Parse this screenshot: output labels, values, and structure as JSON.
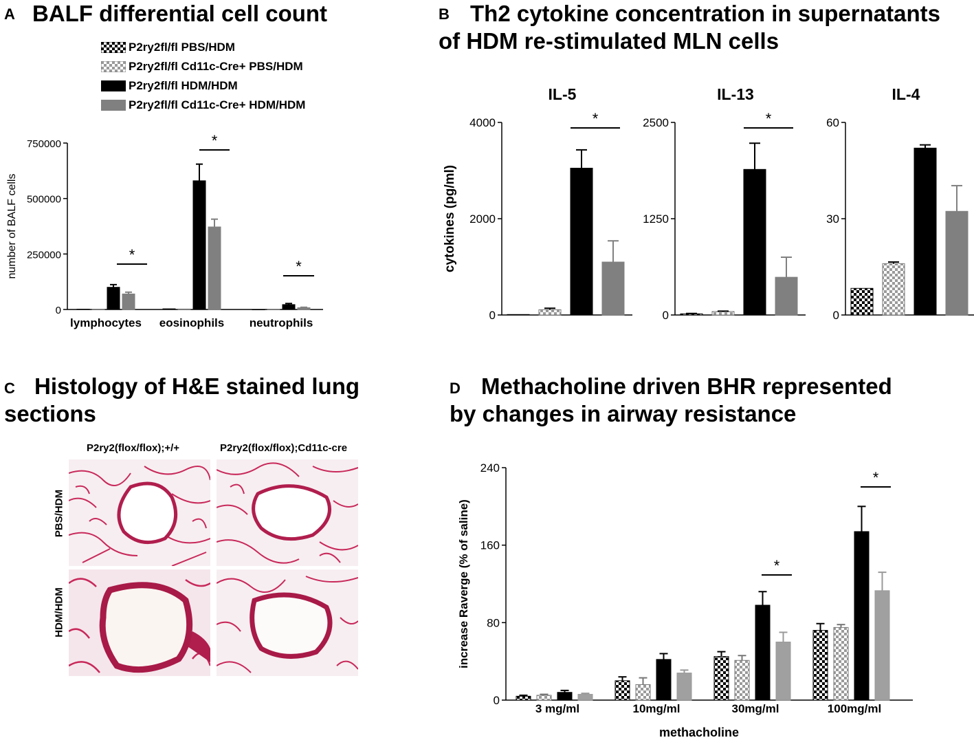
{
  "panels": {
    "A": {
      "letter": "A",
      "title": "BALF differential cell count"
    },
    "B": {
      "letter": "B",
      "title_line1": "Th2 cytokine concentration in supernatants",
      "title_line2": "of HDM re-stimulated MLN cells"
    },
    "C": {
      "letter": "C",
      "title_line1": "Histology of H&E stained lung",
      "title_line2": "sections"
    },
    "D": {
      "letter": "D",
      "title_line1": "Methacholine driven BHR represented",
      "title_line2": "by changes in airway resistance"
    }
  },
  "legend": {
    "items": [
      {
        "label": "P2ry2fl/fl PBS/HDM",
        "pattern": "checker-dark"
      },
      {
        "label": "P2ry2fl/fl Cd11c-Cre+ PBS/HDM",
        "pattern": "checker-light"
      },
      {
        "label": "P2ry2fl/fl HDM/HDM",
        "pattern": "black"
      },
      {
        "label": "P2ry2fl/fl Cd11c-Cre+ HDM/HDM",
        "pattern": "grey"
      }
    ]
  },
  "colors": {
    "black": "#000000",
    "grey": "#808080",
    "grey_light": "#a0a0a0",
    "tissue_pink": "#c8285a"
  },
  "histology": {
    "col_labels": [
      "P2ry2(flox/flox);+/+",
      "P2ry2(flox/flox);Cd11c-cre"
    ],
    "row_labels": [
      "PBS/HDM",
      "HDM/HDM"
    ]
  },
  "chart_data": [
    {
      "panel": "A",
      "type": "bar",
      "ylabel": "number of BALF cells",
      "xlabel": "",
      "ylim": [
        0,
        750000
      ],
      "yticks": [
        "0",
        "250000",
        "500000",
        "750000"
      ],
      "categories": [
        "lymphocytes",
        "eosinophils",
        "neutrophils"
      ],
      "series": [
        {
          "name": "P2ry2fl/fl PBS/HDM",
          "values": [
            1500,
            3000,
            0
          ],
          "errors": [
            0,
            0,
            0
          ]
        },
        {
          "name": "P2ry2fl/fl Cd11c-Cre+ PBS/HDM",
          "values": [
            1000,
            2000,
            0
          ],
          "errors": [
            0,
            0,
            0
          ]
        },
        {
          "name": "P2ry2fl/fl HDM/HDM",
          "values": [
            100000,
            580000,
            22000
          ],
          "errors": [
            12000,
            75000,
            5000
          ]
        },
        {
          "name": "P2ry2fl/fl Cd11c-Cre+ HDM/HDM",
          "values": [
            70000,
            372000,
            8000
          ],
          "errors": [
            8000,
            35000,
            2000
          ]
        }
      ],
      "annotations": [
        "*",
        "*",
        "*"
      ]
    },
    {
      "panel": "B",
      "type": "bar",
      "title": "IL-5",
      "ylabel": "cytokines (pg/ml)",
      "ylim": [
        0,
        4000
      ],
      "yticks": [
        "0",
        "2000",
        "4000"
      ],
      "values": [
        10,
        110,
        3050,
        1100
      ],
      "errors": [
        0,
        30,
        380,
        440
      ],
      "annotation": "*"
    },
    {
      "panel": "B",
      "type": "bar",
      "title": "IL-13",
      "ylim": [
        0,
        2500
      ],
      "yticks": [
        "0",
        "1250",
        "2500"
      ],
      "values": [
        15,
        45,
        1890,
        490
      ],
      "errors": [
        5,
        5,
        340,
        260
      ],
      "annotation": "*"
    },
    {
      "panel": "B",
      "type": "bar",
      "title": "IL-4",
      "ylim": [
        0,
        60
      ],
      "yticks": [
        "0",
        "30",
        "60"
      ],
      "values": [
        8.3,
        16,
        52,
        32.3
      ],
      "errors": [
        0,
        0.5,
        1,
        8
      ],
      "annotation": ""
    },
    {
      "panel": "D",
      "type": "bar",
      "ylabel": "increase Raverge (% of saline)",
      "xlabel": "methacholine",
      "ylim": [
        0,
        240
      ],
      "yticks": [
        "0",
        "80",
        "160",
        "240"
      ],
      "categories": [
        "3 mg/ml",
        "10mg/ml",
        "30mg/ml",
        "100mg/ml"
      ],
      "series": [
        {
          "name": "P2ry2fl/fl PBS/HDM",
          "values": [
            4,
            20,
            45,
            72
          ],
          "errors": [
            1,
            4,
            5,
            7
          ]
        },
        {
          "name": "P2ry2fl/fl Cd11c-Cre+ PBS/HDM",
          "values": [
            5,
            16,
            41,
            75
          ],
          "errors": [
            1,
            7,
            5,
            3
          ]
        },
        {
          "name": "P2ry2fl/fl HDM/HDM",
          "values": [
            8,
            42,
            98,
            174
          ],
          "errors": [
            2,
            6,
            14,
            26
          ]
        },
        {
          "name": "P2ry2fl/fl Cd11c-Cre+ HDM/HDM",
          "values": [
            6,
            28,
            60,
            113
          ],
          "errors": [
            1,
            3,
            10,
            19
          ]
        }
      ],
      "annotations": [
        "*",
        "*"
      ]
    }
  ]
}
